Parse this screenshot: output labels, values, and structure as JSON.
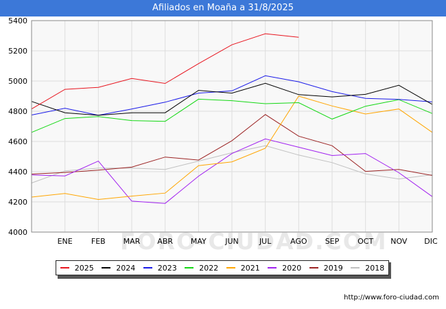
{
  "title": "Afiliados en Moaña a 31/8/2025",
  "watermark": "FORO-CIUDAD.COM",
  "source_url": "http://www.foro-ciudad.com",
  "chart_data": {
    "type": "line",
    "title": "Afiliados en Moaña a 31/8/2025",
    "categories": [
      "",
      "ENE",
      "FEB",
      "MAR",
      "ABR",
      "MAY",
      "JUN",
      "JUL",
      "AGO",
      "SEP",
      "OCT",
      "NOV",
      "DIC"
    ],
    "ylim": [
      4000,
      5400
    ],
    "yticks": [
      4000,
      4200,
      4400,
      4600,
      4800,
      5000,
      5200,
      5400
    ],
    "grid": true,
    "legend_position": "bottom",
    "series": [
      {
        "name": "2025",
        "color": "#e8141e",
        "values": [
          4815,
          4945,
          4958,
          5017,
          4984,
          5115,
          5240,
          5313,
          5290,
          null,
          null,
          null,
          null
        ]
      },
      {
        "name": "2024",
        "color": "#000000",
        "values": [
          4865,
          4790,
          4773,
          4790,
          4790,
          4938,
          4920,
          4985,
          4910,
          4895,
          4912,
          4972,
          4845
        ]
      },
      {
        "name": "2023",
        "color": "#1818e8",
        "values": [
          4775,
          4820,
          4773,
          4815,
          4860,
          4920,
          4935,
          5035,
          4995,
          4930,
          4885,
          4878,
          4862
        ]
      },
      {
        "name": "2022",
        "color": "#12d812",
        "values": [
          4660,
          4752,
          4765,
          4738,
          4733,
          4880,
          4870,
          4850,
          4857,
          4748,
          4833,
          4877,
          4785
        ]
      },
      {
        "name": "2021",
        "color": "#ffa500",
        "values": [
          4232,
          4256,
          4216,
          4238,
          4258,
          4440,
          4465,
          4555,
          4900,
          4835,
          4782,
          4815,
          4660
        ]
      },
      {
        "name": "2020",
        "color": "#a020f0",
        "values": [
          4378,
          4372,
          4470,
          4205,
          4190,
          4370,
          4520,
          4617,
          4562,
          4507,
          4520,
          4393,
          4235
        ]
      },
      {
        "name": "2019",
        "color": "#9b2222",
        "values": [
          4384,
          4395,
          4410,
          4430,
          4497,
          4477,
          4605,
          4778,
          4635,
          4572,
          4402,
          4415,
          4375
        ]
      },
      {
        "name": "2018",
        "color": "#c0c0c0",
        "values": [
          4325,
          4405,
          4423,
          4424,
          4415,
          4470,
          4525,
          4572,
          4510,
          4460,
          4385,
          4352,
          4380
        ]
      }
    ]
  }
}
